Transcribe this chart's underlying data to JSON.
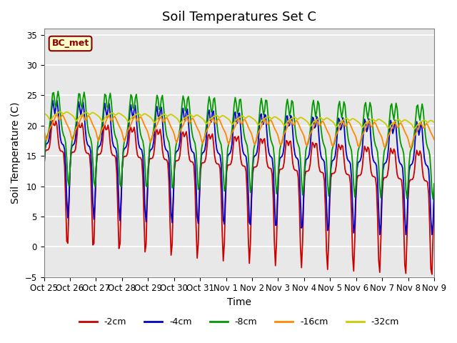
{
  "title": "Soil Temperatures Set C",
  "xlabel": "Time",
  "ylabel": "Soil Temperature (C)",
  "ylim": [
    -5,
    36
  ],
  "xlim": [
    0,
    15
  ],
  "xtick_labels": [
    "Oct 25",
    "Oct 26",
    "Oct 27",
    "Oct 28",
    "Oct 29",
    "Oct 30",
    "Oct 31",
    "Nov 1",
    "Nov 2",
    "Nov 3",
    "Nov 4",
    "Nov 5",
    "Nov 6",
    "Nov 7",
    "Nov 8",
    "Nov 9"
  ],
  "ytick_values": [
    -5,
    0,
    5,
    10,
    15,
    20,
    25,
    30,
    35
  ],
  "legend_entries": [
    "-2cm",
    "-4cm",
    "-8cm",
    "-16cm",
    "-32cm"
  ],
  "line_colors": [
    "#cc0000",
    "#0000cc",
    "#009900",
    "#ff8800",
    "#cccc00"
  ],
  "annotation_text": "BC_met",
  "background_color": "#e8e8e8",
  "title_fontsize": 13,
  "axis_label_fontsize": 10,
  "tick_fontsize": 8.5
}
